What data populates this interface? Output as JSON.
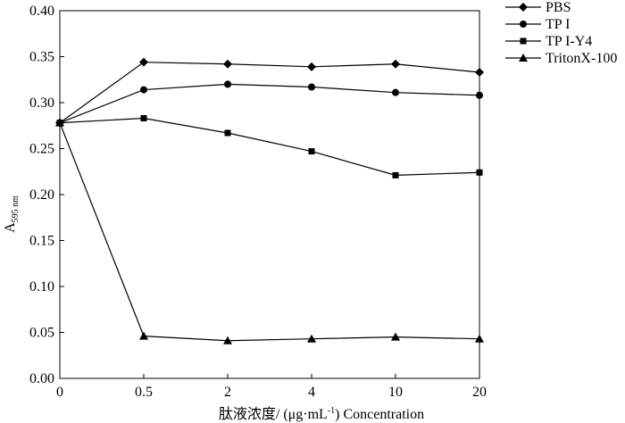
{
  "chart_data": {
    "type": "line",
    "categories": [
      "0",
      "0.5",
      "2",
      "4",
      "10",
      "20"
    ],
    "series": [
      {
        "name": "PBS",
        "marker": "diamond",
        "values": [
          0.278,
          0.344,
          0.342,
          0.339,
          0.342,
          0.333
        ]
      },
      {
        "name": "TP I",
        "marker": "circle",
        "values": [
          0.278,
          0.314,
          0.32,
          0.317,
          0.311,
          0.308
        ]
      },
      {
        "name": "TP I-Y4",
        "marker": "square",
        "values": [
          0.278,
          0.283,
          0.267,
          0.247,
          0.221,
          0.224
        ]
      },
      {
        "name": "TritonX-100",
        "marker": "triangle",
        "values": [
          0.278,
          0.046,
          0.041,
          0.043,
          0.045,
          0.043
        ]
      }
    ],
    "yticks": [
      "0.00",
      "0.05",
      "0.10",
      "0.15",
      "0.20",
      "0.25",
      "0.30",
      "0.35",
      "0.40"
    ],
    "ylim": [
      0,
      0.4
    ],
    "ylabel": {
      "main": "A",
      "sub": "595 nm"
    },
    "xlabel": {
      "prefix": "肽液浓度/ (μg·mL",
      "sup": "-1",
      "suffix": ") Concentration"
    },
    "grid": false,
    "legend_position": "top-right",
    "color": "#000000"
  }
}
